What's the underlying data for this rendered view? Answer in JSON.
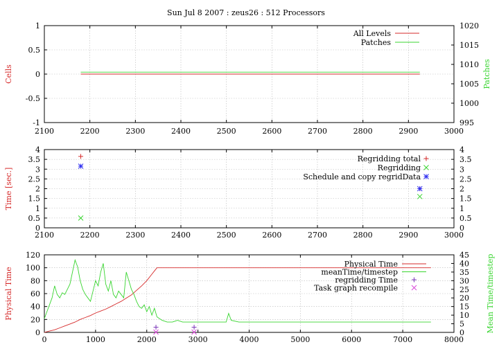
{
  "figure": {
    "title": "Sun Jul 8 2007 : zeus26 : 512 Processors"
  },
  "colors": {
    "red": "#d62a2a",
    "green": "#38d52f",
    "blue": "#2f2ff0",
    "magenta": "#d946d9",
    "purple": "#7a35b8",
    "grid": "#b9b9b9",
    "axis": "#000000"
  },
  "chart_data": [
    {
      "type": "line",
      "title": "Sun Jul 8 2007 : zeus26 : 512 Processors",
      "ylabel": "Cells",
      "y2label": "Patches",
      "xlim": [
        2100,
        3000
      ],
      "ylim": [
        -1,
        1
      ],
      "y2lim": [
        995,
        1020
      ],
      "xticks": [
        2100,
        2200,
        2300,
        2400,
        2500,
        2600,
        2700,
        2800,
        2900,
        3000
      ],
      "yticks": [
        -1,
        -0.5,
        0,
        0.5,
        1
      ],
      "y2ticks": [
        995,
        1000,
        1005,
        1010,
        1015,
        1020
      ],
      "grid": true,
      "legend_position": "top-right",
      "series": [
        {
          "name": "All Levels",
          "axis": "left",
          "color": "red",
          "x": [
            2180,
            2925
          ],
          "y": [
            0,
            0
          ]
        },
        {
          "name": "Patches",
          "axis": "right",
          "color": "green",
          "x": [
            2180,
            2925
          ],
          "y": [
            1008,
            1008
          ]
        }
      ]
    },
    {
      "type": "scatter",
      "ylabel": "Time [sec.]",
      "xlim": [
        2100,
        3000
      ],
      "ylim": [
        0,
        4
      ],
      "y2lim": [
        0,
        4
      ],
      "xticks": [
        2100,
        2200,
        2300,
        2400,
        2500,
        2600,
        2700,
        2800,
        2900,
        3000
      ],
      "yticks": [
        0,
        0.5,
        1,
        1.5,
        2,
        2.5,
        3,
        3.5,
        4
      ],
      "grid": true,
      "legend_position": "top-right",
      "series": [
        {
          "name": "Regridding total",
          "marker": "plus",
          "color": "red",
          "points": [
            [
              2180,
              3.65
            ],
            [
              2925,
              2.0
            ]
          ]
        },
        {
          "name": "Regridding",
          "marker": "cross",
          "color": "green",
          "points": [
            [
              2180,
              0.5
            ],
            [
              2925,
              1.6
            ]
          ]
        },
        {
          "name": "Schedule and copy regridData",
          "marker": "star",
          "color": "blue",
          "points": [
            [
              2180,
              3.15
            ],
            [
              2925,
              2.0
            ]
          ]
        }
      ]
    },
    {
      "type": "line",
      "ylabel": "Physical Time",
      "y2label": "Mean Time/timestep",
      "xlim": [
        0,
        8000
      ],
      "ylim": [
        0,
        120
      ],
      "y2lim": [
        0,
        45
      ],
      "xticks": [
        0,
        1000,
        2000,
        3000,
        4000,
        5000,
        6000,
        7000,
        8000
      ],
      "yticks": [
        0,
        20,
        40,
        60,
        80,
        100,
        120
      ],
      "y2ticks": [
        0,
        5,
        10,
        15,
        20,
        25,
        30,
        35,
        40,
        45
      ],
      "grid": true,
      "legend_position": "top-right",
      "series": [
        {
          "name": "Physical Time",
          "axis": "left",
          "color": "red",
          "x": [
            0,
            100,
            200,
            300,
            400,
            500,
            600,
            700,
            800,
            900,
            1000,
            1100,
            1200,
            1300,
            1400,
            1500,
            1600,
            1700,
            1800,
            1900,
            2000,
            2100,
            2150,
            2200,
            2300,
            3000,
            4000,
            5000,
            6000,
            7000,
            7550
          ],
          "y": [
            0,
            2,
            4,
            7,
            10,
            13,
            16,
            20,
            23,
            26,
            30,
            33,
            36,
            40,
            44,
            48,
            53,
            58,
            65,
            72,
            80,
            90,
            95,
            100,
            100,
            100,
            100,
            100,
            100,
            100,
            100
          ]
        },
        {
          "name": "meanTime/timestep",
          "axis": "right",
          "color": "green",
          "x": [
            0,
            50,
            100,
            150,
            200,
            250,
            300,
            350,
            400,
            450,
            500,
            550,
            600,
            650,
            700,
            750,
            800,
            850,
            900,
            950,
            1000,
            1050,
            1100,
            1150,
            1200,
            1250,
            1300,
            1350,
            1400,
            1450,
            1500,
            1550,
            1600,
            1650,
            1700,
            1750,
            1800,
            1850,
            1900,
            1950,
            2000,
            2050,
            2100,
            2150,
            2200,
            2250,
            2300,
            2400,
            2500,
            2600,
            2700,
            2800,
            2900,
            3000,
            3200,
            3400,
            3550,
            3600,
            3650,
            3800,
            4000,
            4500,
            5000,
            5500,
            6000,
            6500,
            7000,
            7500,
            7550
          ],
          "y": [
            8,
            12,
            16,
            20,
            27,
            22,
            20,
            23,
            22,
            25,
            28,
            35,
            42,
            38,
            30,
            25,
            22,
            20,
            18,
            24,
            30,
            27,
            35,
            40,
            28,
            24,
            30,
            22,
            20,
            24,
            22,
            20,
            35,
            30,
            25,
            22,
            18,
            15,
            14,
            16,
            12,
            15,
            10,
            14,
            9,
            8,
            7,
            6,
            6,
            7,
            6,
            6,
            6,
            6,
            6,
            6,
            6,
            11,
            7,
            6,
            6,
            6,
            6,
            6,
            6,
            6,
            6,
            6,
            6
          ]
        },
        {
          "name": "regridding Time",
          "axis": "right",
          "color": "purple",
          "marker": "plus",
          "points": [
            [
              2180,
              3.0
            ],
            [
              2925,
              3.0
            ]
          ]
        },
        {
          "name": "Task graph recompile",
          "axis": "right",
          "color": "magenta",
          "marker": "cross",
          "points": [
            [
              2180,
              0.2
            ],
            [
              2925,
              0.2
            ]
          ]
        }
      ]
    }
  ]
}
